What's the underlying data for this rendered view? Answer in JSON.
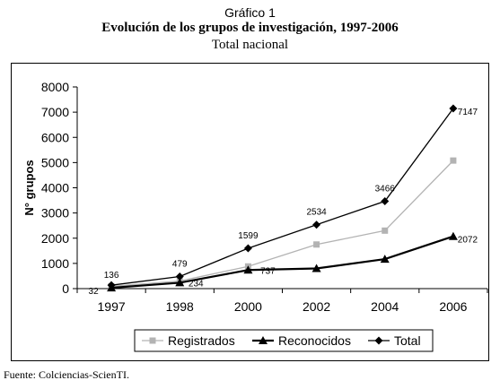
{
  "header": {
    "figure_label": "Gráfico 1",
    "title": "Evolución de los grupos de investigación, 1997-2006",
    "subtitle": "Total nacional"
  },
  "footer": {
    "source": "Fuente: Colciencias-ScienTI."
  },
  "chart_data": {
    "type": "line",
    "categories": [
      "1997",
      "1998",
      "2000",
      "2002",
      "2004",
      "2006"
    ],
    "ylabel": "N° grupos",
    "xlabel": "",
    "ylim": [
      0,
      8000
    ],
    "yticks": [
      0,
      1000,
      2000,
      3000,
      4000,
      5000,
      6000,
      7000,
      8000
    ],
    "grid": false,
    "legend_position": "bottom",
    "series": [
      {
        "name": "Registrados",
        "color": "#b3b3b3",
        "marker": "square",
        "values": [
          90,
          300,
          880,
          1750,
          2300,
          5080
        ],
        "labels": []
      },
      {
        "name": "Reconocidos",
        "color": "#000000",
        "marker": "triangle",
        "values": [
          32,
          234,
          737,
          800,
          1170,
          2072
        ],
        "labels": [
          "32",
          "234",
          "737",
          "",
          "",
          "2072"
        ]
      },
      {
        "name": "Total",
        "color": "#000000",
        "marker": "diamond",
        "values": [
          136,
          479,
          1599,
          2534,
          3466,
          7147
        ],
        "labels": [
          "136",
          "479",
          "1599",
          "2534",
          "3466",
          "7147"
        ]
      }
    ]
  }
}
